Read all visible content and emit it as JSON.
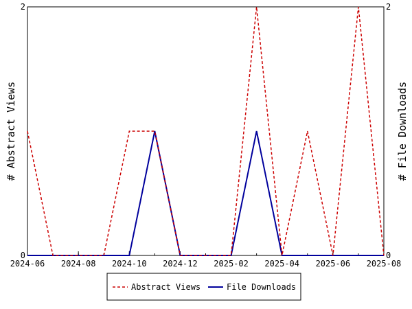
{
  "chart_data": {
    "type": "line",
    "x_dates": [
      "2024-06",
      "2024-07",
      "2024-08",
      "2024-09",
      "2024-10",
      "2024-11",
      "2024-12",
      "2025-01",
      "2025-02",
      "2025-03",
      "2025-04",
      "2025-05",
      "2025-06",
      "2025-07",
      "2025-08"
    ],
    "x_ticks": [
      "2024-06",
      "2024-08",
      "2024-10",
      "2024-12",
      "2025-02",
      "2025-04",
      "2025-06",
      "2025-08"
    ],
    "ylabel_left": "# Abstract Views",
    "ylabel_right": "# File Downloads",
    "ylim_left": [
      0,
      2
    ],
    "ylim_right": [
      0,
      2
    ],
    "y_ticks_left": [
      "0",
      "2"
    ],
    "y_ticks_right": [
      "0",
      "2"
    ],
    "legend_position": "bottom",
    "grid": false,
    "series": [
      {
        "name": "Abstract Views",
        "axis": "left",
        "color": "#cc0000",
        "dash": "dashed",
        "values": [
          1,
          0,
          0,
          0,
          1,
          1,
          0,
          0,
          0,
          2,
          0,
          1,
          0,
          2,
          0
        ]
      },
      {
        "name": "File Downloads",
        "axis": "right",
        "color": "#00009c",
        "dash": "solid",
        "values": [
          0,
          0,
          0,
          0,
          0,
          1,
          0,
          0,
          0,
          1,
          0,
          0,
          0,
          0,
          0
        ]
      }
    ]
  }
}
